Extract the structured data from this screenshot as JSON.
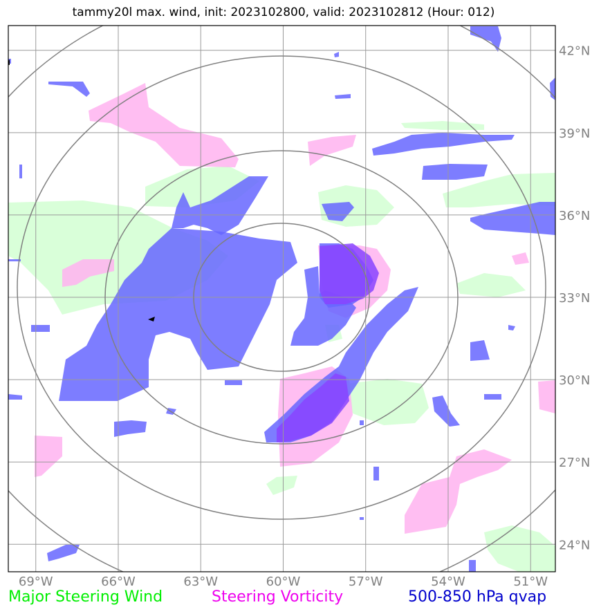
{
  "title": "tammy20l max. wind, init: 2023102800, valid: 2023102812 (Hour: 012)",
  "map": {
    "lon_range": [
      -70,
      -50.1
    ],
    "lat_range": [
      23,
      42.9
    ],
    "lon_ticks": [
      {
        "value": -69,
        "label": "69°W"
      },
      {
        "value": -66,
        "label": "66°W"
      },
      {
        "value": -63,
        "label": "63°W"
      },
      {
        "value": -60,
        "label": "60°W"
      },
      {
        "value": -57,
        "label": "57°W"
      },
      {
        "value": -54,
        "label": "54°W"
      },
      {
        "value": -51,
        "label": "51°W"
      }
    ],
    "lat_ticks": [
      {
        "value": 42,
        "label": "42°N"
      },
      {
        "value": 39,
        "label": "39°N"
      },
      {
        "value": 36,
        "label": "36°N"
      },
      {
        "value": 33,
        "label": "33°N"
      },
      {
        "value": 30,
        "label": "30°N"
      },
      {
        "value": 27,
        "label": "27°N"
      },
      {
        "value": 24,
        "label": "24°N"
      }
    ],
    "gridlines": true,
    "range_rings_center": [
      -60,
      33.1
    ],
    "colors": {
      "wind": "#ccffcc",
      "vorticity": "#ffb3f0",
      "qvap": "#6666ff",
      "grid": "#9a9a9a",
      "rings": "#808080"
    }
  },
  "legend": {
    "wind": {
      "label": "Major Steering Wind",
      "color": "#00ee00"
    },
    "vorticity": {
      "label": "Steering Vorticity",
      "color": "#ee00ee"
    },
    "qvap": {
      "label": "500-850 hPa qvap",
      "color": "#0000cc"
    }
  }
}
